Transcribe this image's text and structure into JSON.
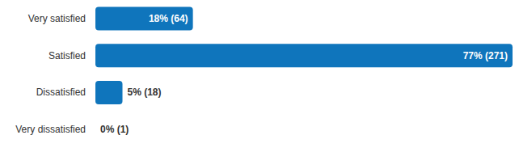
{
  "chart_data": {
    "type": "bar",
    "orientation": "horizontal",
    "categories": [
      "Very satisfied",
      "Satisfied",
      "Dissatisfied",
      "Very dissatisfied"
    ],
    "values": [
      18,
      77,
      5,
      0
    ],
    "value_labels": [
      "18% (64)",
      "77% (271)",
      "5% (18)",
      "0% (1)"
    ],
    "color": "#0f75bc",
    "xlim": [
      0,
      77
    ],
    "data_labels": true,
    "grid": false,
    "tick_labels": "y"
  }
}
